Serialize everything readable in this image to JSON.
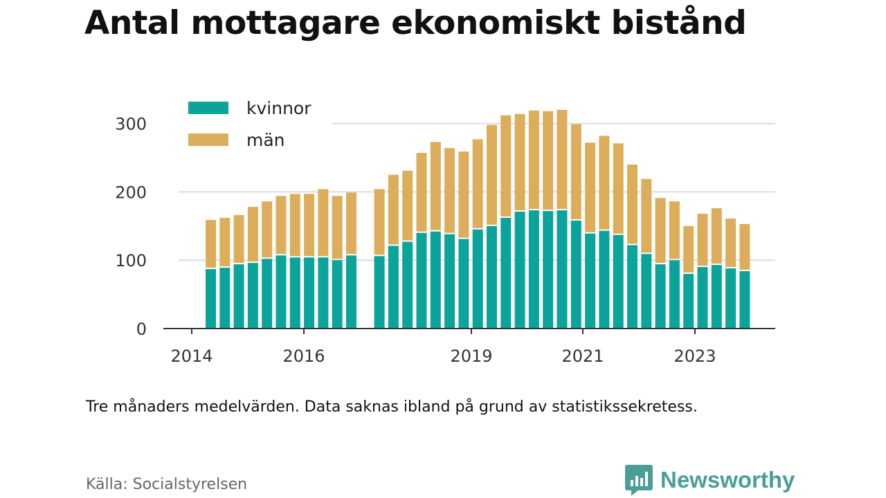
{
  "title": "Antal mottagare ekonomiskt bistånd",
  "note": "Tre månaders medelvärden. Data saknas ibland på grund av statistikssekretess.",
  "source": "Källa: Socialstyrelsen",
  "brand": {
    "name": "Newsworthy",
    "icon": "newsworthy-logo-icon",
    "color": "#4a9e98"
  },
  "chart_data": {
    "type": "bar",
    "stacked": true,
    "x_tick_labels": [
      "2014",
      "2016",
      "2019",
      "2021",
      "2023"
    ],
    "y_ticks": [
      0,
      100,
      200,
      300
    ],
    "ylim": [
      0,
      340
    ],
    "grid": true,
    "legend_position": "top-left",
    "series": [
      {
        "name": "kvinnor",
        "color": "#0aa49b",
        "values": [
          87,
          89,
          94,
          96,
          102,
          107,
          104,
          104,
          104,
          100,
          107,
          null,
          106,
          121,
          127,
          140,
          142,
          138,
          131,
          145,
          150,
          162,
          171,
          173,
          172,
          173,
          158,
          139,
          143,
          137,
          122,
          109,
          94,
          100,
          80,
          90,
          93,
          88,
          84
        ]
      },
      {
        "name": "män",
        "color": "#dcad5b",
        "values": [
          72,
          73,
          72,
          82,
          84,
          87,
          93,
          93,
          100,
          94,
          92,
          null,
          98,
          104,
          104,
          117,
          131,
          126,
          128,
          132,
          148,
          150,
          143,
          146,
          146,
          147,
          141,
          133,
          139,
          134,
          118,
          110,
          97,
          86,
          70,
          78,
          83,
          73,
          69
        ]
      }
    ]
  }
}
